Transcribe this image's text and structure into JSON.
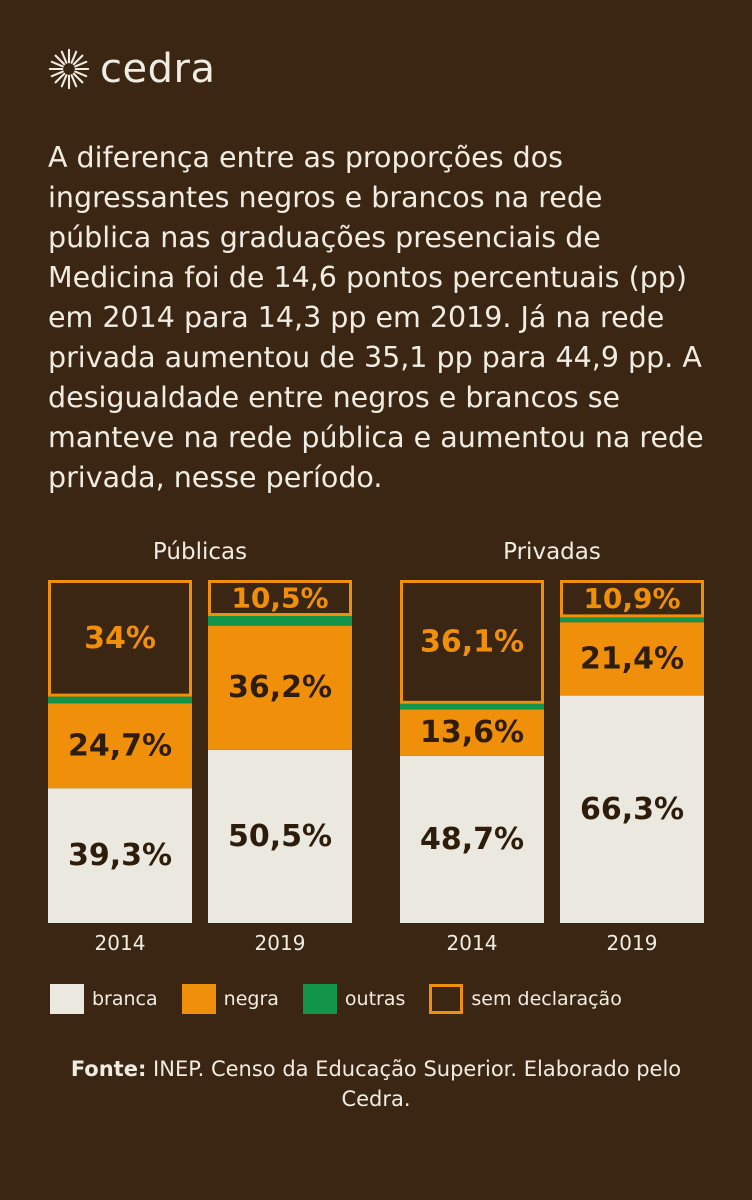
{
  "brand": {
    "name": "cedra"
  },
  "intro": "A diferença entre as proporções dos ingressantes negros e brancos na rede pública nas graduações presenciais de Medicina foi de 14,6 pontos percentuais (pp) em 2014 para 14,3 pp em 2019. Já na rede privada aumentou de 35,1 pp para 44,9 pp. A desigualdade entre negros e brancos se manteve na rede pública e aumentou na rede privada, nesse período.",
  "colors": {
    "background": "#3b2614",
    "branca": "#ebe8df",
    "negra": "#f0900a",
    "outras": "#12954a",
    "sem_declaracao": "#f0900a",
    "text": "#f0ece2",
    "label_dark": "#2f1d0c"
  },
  "chart_data": {
    "type": "bar",
    "stacked": true,
    "groups": [
      {
        "title": "Públicas",
        "bars": [
          {
            "year": "2014",
            "segments": {
              "branca": 39.3,
              "negra": 24.7,
              "outras": 2.0,
              "sem_declaracao": 34.0
            },
            "labels": {
              "branca": "39,3%",
              "negra": "24,7%",
              "sem_declaracao": "34%"
            }
          },
          {
            "year": "2019",
            "segments": {
              "branca": 50.5,
              "negra": 36.2,
              "outras": 2.8,
              "sem_declaracao": 10.5
            },
            "labels": {
              "branca": "50,5%",
              "negra": "36,2%",
              "sem_declaracao": "10,5%"
            }
          }
        ]
      },
      {
        "title": "Privadas",
        "bars": [
          {
            "year": "2014",
            "segments": {
              "branca": 48.7,
              "negra": 13.6,
              "outras": 1.6,
              "sem_declaracao": 36.1
            },
            "labels": {
              "branca": "48,7%",
              "negra": "13,6%",
              "sem_declaracao": "36,1%"
            }
          },
          {
            "year": "2019",
            "segments": {
              "branca": 66.3,
              "negra": 21.4,
              "outras": 1.4,
              "sem_declaracao": 10.9
            },
            "labels": {
              "branca": "66,3%",
              "negra": "21,4%",
              "sem_declaracao": "10,9%"
            }
          }
        ]
      }
    ],
    "series_order": [
      "branca",
      "negra",
      "outras",
      "sem_declaracao"
    ],
    "ylim": [
      0,
      100
    ]
  },
  "legend": [
    {
      "key": "branca",
      "label": "branca"
    },
    {
      "key": "negra",
      "label": "negra"
    },
    {
      "key": "outras",
      "label": "outras"
    },
    {
      "key": "sem_declaracao",
      "label": "sem declaração"
    }
  ],
  "source": {
    "bold": "Fonte:",
    "text": " INEP. Censo da Educação Superior. Elaborado pelo Cedra."
  }
}
